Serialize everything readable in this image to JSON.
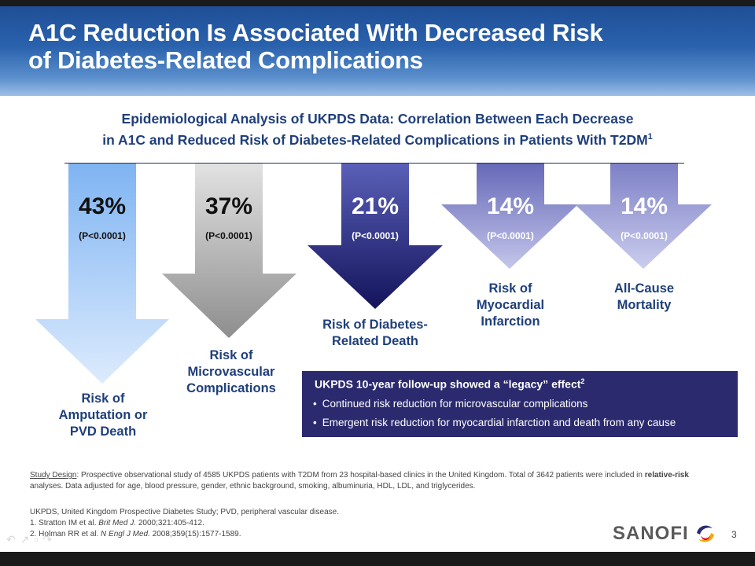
{
  "header": {
    "title_lines": [
      "A1C Reduction Is Associated With Decreased Risk",
      "of Diabetes-Related Complications"
    ]
  },
  "subtitle": {
    "line1": "Epidemiological Analysis of UKPDS Data: Correlation Between Each Decrease",
    "line2": "in A1C and Reduced Risk of Diabetes-Related Complications in Patients With T2DM",
    "sup": "1"
  },
  "arrows": [
    {
      "percent": "43%",
      "pvalue": "(P<0.0001)",
      "label_lines": [
        "Risk of",
        "Amputation or",
        "PVD Death"
      ],
      "color": "#b9d8fb"
    },
    {
      "percent": "37%",
      "pvalue": "(P<0.0001)",
      "label_lines": [
        "Risk of",
        "Microvascular",
        "Complications"
      ],
      "color": "#a8a8a8"
    },
    {
      "percent": "21%",
      "pvalue": "(P<0.0001)",
      "label_lines": [
        "Risk of Diabetes-",
        "Related Death"
      ],
      "color": "#27287a"
    },
    {
      "percent": "14%",
      "pvalue": "(P<0.0001)",
      "label_lines": [
        "Risk of",
        "Myocardial",
        "Infarction"
      ],
      "color": "#8f91cd"
    },
    {
      "percent": "14%",
      "pvalue": "(P<0.0001)",
      "label_lines": [
        "All-Cause",
        "Mortality"
      ],
      "color": "#9c9ed4"
    }
  ],
  "legacy_box": {
    "title": "UKPDS 10-year follow-up showed a “legacy” effect",
    "title_sup": "2",
    "bullets": [
      "Continued risk reduction for microvascular complications",
      "Emergent risk reduction for myocardial infarction and death from any cause"
    ]
  },
  "footnotes": {
    "study_label": "Study Design",
    "study_text_1": ": Prospective observational study of 4585 UKPDS patients with T2DM from 23 hospital-based clinics in the United Kingdom. Total of 3642 patients were included in ",
    "study_bold": "relative-risk",
    "study_text_2": " analyses. Data adjusted for age, blood pressure, gender, ethnic background, smoking, albuminuria, HDL, LDL, and triglycerides.",
    "abbreviations": "UKPDS, United Kingdom Prospective Diabetes Study; PVD, peripheral vascular disease.",
    "refs": [
      {
        "prefix": "1. Stratton IM et al. ",
        "journal": "Brit Med J.",
        "suffix": " 2000;321:405-412."
      },
      {
        "prefix": "2. Holman RR et al. ",
        "journal": "N Engl J Med.",
        "suffix": " 2008;359(15):1577-1589."
      }
    ]
  },
  "logo": {
    "text": "SANOFI",
    "icon": "sanofi-swirl-icon"
  },
  "page_number": "3",
  "nav_icons": [
    "back-arrow-icon",
    "pen-icon",
    "menu-icon",
    "forward-arrow-icon"
  ]
}
